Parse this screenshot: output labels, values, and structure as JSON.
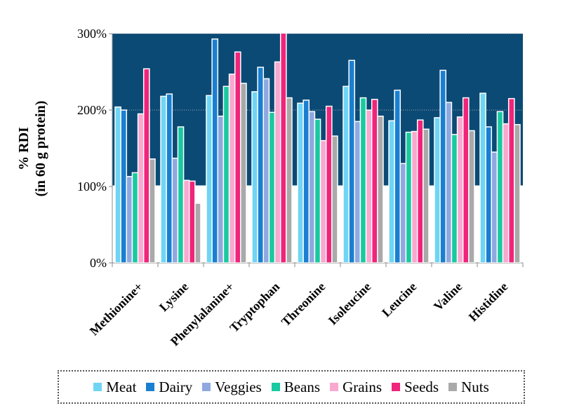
{
  "chart_data": {
    "type": "bar",
    "y_label": [
      "% RDI",
      "(in 60 g protein)"
    ],
    "categories": [
      "Methionine+",
      "Lysine",
      "Phenylalanine+",
      "Tryptophan",
      "Threonine",
      "Isoleucine",
      "Leucine",
      "Valine",
      "Histidine"
    ],
    "series": [
      {
        "name": "Meat",
        "color": "#6fd5f5",
        "values": [
          204,
          218,
          219,
          224,
          209,
          231,
          186,
          190,
          222
        ]
      },
      {
        "name": "Dairy",
        "color": "#1a7fd1",
        "values": [
          200,
          221,
          293,
          256,
          213,
          265,
          226,
          252,
          178
        ]
      },
      {
        "name": "Veggies",
        "color": "#8fa8e0",
        "values": [
          113,
          137,
          192,
          241,
          198,
          185,
          130,
          210,
          145
        ]
      },
      {
        "name": "Beans",
        "color": "#19c9a0",
        "values": [
          118,
          178,
          231,
          197,
          188,
          216,
          171,
          168,
          198
        ]
      },
      {
        "name": "Grains",
        "color": "#f9a8cf",
        "values": [
          195,
          108,
          247,
          263,
          160,
          200,
          172,
          191,
          182
        ]
      },
      {
        "name": "Seeds",
        "color": "#f0247a",
        "values": [
          254,
          107,
          276,
          302,
          205,
          214,
          187,
          216,
          215
        ]
      },
      {
        "name": "Nuts",
        "color": "#a9a9a9",
        "values": [
          136,
          78,
          235,
          216,
          166,
          192,
          175,
          173,
          181
        ]
      }
    ],
    "ylim": [
      0,
      300
    ],
    "yticks": [
      {
        "value": 0,
        "label": "0%"
      },
      {
        "value": 100,
        "label": "100%"
      },
      {
        "value": 200,
        "label": "200%"
      },
      {
        "value": 300,
        "label": "300%"
      }
    ],
    "grid": true,
    "band_color": "#0b4a75"
  }
}
